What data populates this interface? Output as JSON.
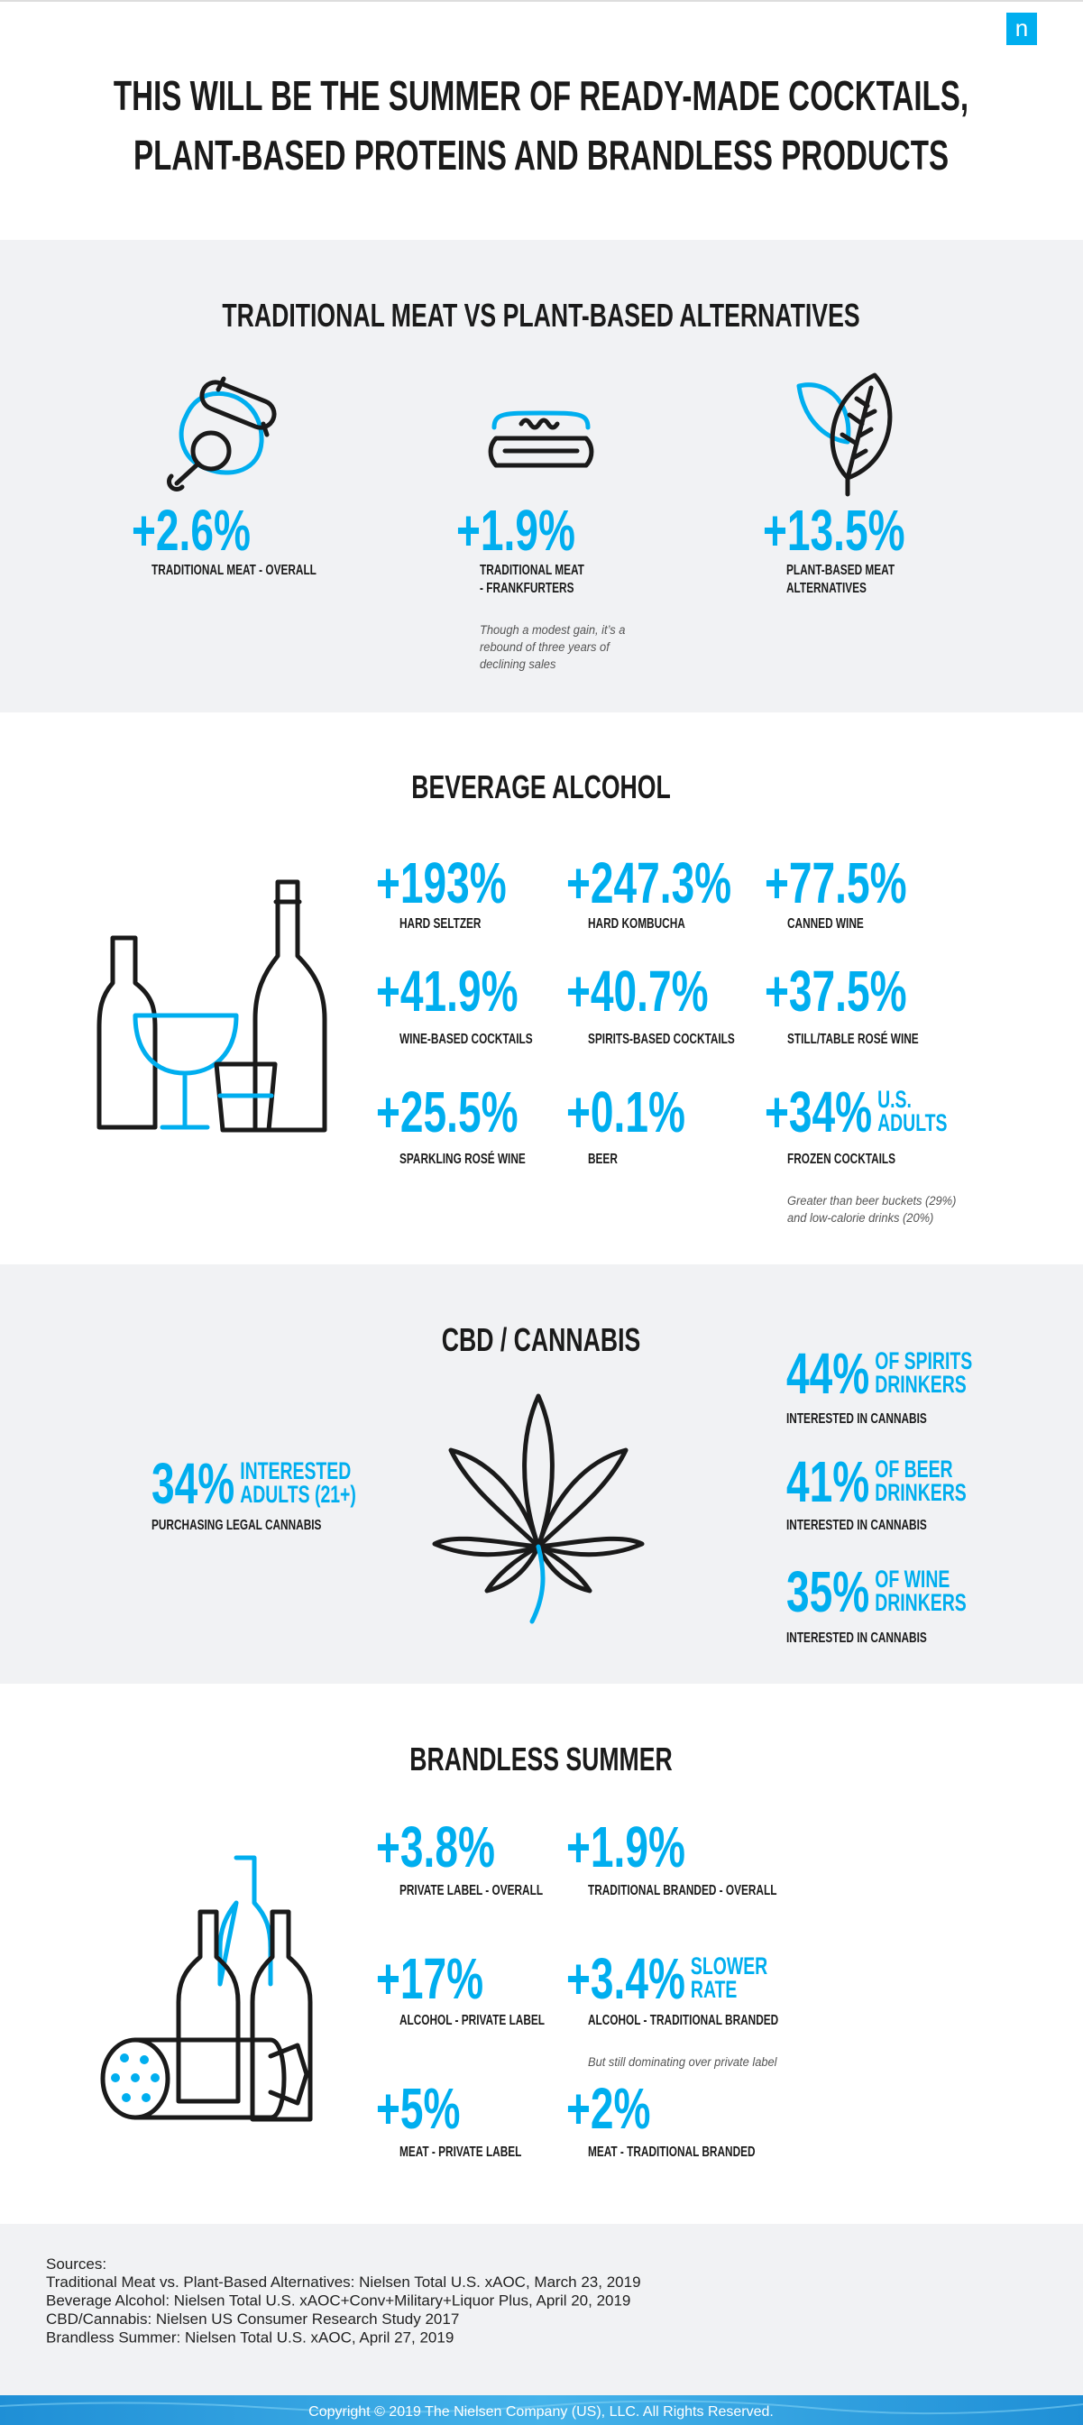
{
  "logo": "n",
  "title": [
    "THIS WILL BE THE SUMMER OF READY-MADE COCKTAILS,",
    "PLANT-BASED PROTEINS AND BRANDLESS PRODUCTS"
  ],
  "sections": [
    {
      "heading": "TRADITIONAL MEAT VS PLANT-BASED ALTERNATIVES",
      "stats": [
        {
          "value": "+2.6%",
          "label": [
            "TRADITIONAL MEAT - OVERALL"
          ]
        },
        {
          "value": "+1.9%",
          "label": [
            "TRADITIONAL MEAT",
            "- FRANKFURTERS"
          ],
          "note": [
            "Though a modest gain, it’s a",
            "rebound of three years of",
            "declining sales"
          ]
        },
        {
          "value": "+13.5%",
          "label": [
            "PLANT-BASED MEAT",
            "ALTERNATIVES"
          ]
        }
      ]
    },
    {
      "heading": "BEVERAGE ALCOHOL",
      "stats": [
        {
          "value": "+193%",
          "label": [
            "HARD SELTZER"
          ]
        },
        {
          "value": "+247.3%",
          "label": [
            "HARD KOMBUCHA"
          ]
        },
        {
          "value": "+77.5%",
          "label": [
            "CANNED WINE"
          ]
        },
        {
          "value": "+41.9%",
          "label": [
            "WINE-BASED COCKTAILS"
          ]
        },
        {
          "value": "+40.7%",
          "label": [
            "SPIRITS-BASED COCKTAILS"
          ]
        },
        {
          "value": "+37.5%",
          "label": [
            "STILL/TABLE ROSÉ WINE"
          ]
        },
        {
          "value": "+25.5%",
          "label": [
            "SPARKLING ROSÉ WINE"
          ]
        },
        {
          "value": "+0.1%",
          "label": [
            "BEER"
          ]
        },
        {
          "value": "+34%",
          "qualifier": [
            "U.S.",
            "ADULTS"
          ],
          "label": [
            "FROZEN COCKTAILS"
          ],
          "note": [
            "Greater than beer buckets (29%)",
            "and low-calorie drinks (20%)"
          ]
        }
      ]
    },
    {
      "heading": "CBD / CANNABIS",
      "stats": [
        {
          "value": "34%",
          "qualifier": [
            "INTERESTED",
            "ADULTS (21+)"
          ],
          "label": [
            "PURCHASING LEGAL CANNABIS"
          ]
        },
        {
          "value": "44%",
          "qualifier": [
            "OF SPIRITS",
            "DRINKERS"
          ],
          "label": [
            "INTERESTED IN CANNABIS"
          ]
        },
        {
          "value": "41%",
          "qualifier": [
            "OF BEER",
            "DRINKERS"
          ],
          "label": [
            "INTERESTED IN CANNABIS"
          ]
        },
        {
          "value": "35%",
          "qualifier": [
            "OF WINE",
            "DRINKERS"
          ],
          "label": [
            "INTERESTED IN CANNABIS"
          ]
        }
      ]
    },
    {
      "heading": "BRANDLESS SUMMER",
      "stats": [
        {
          "value": "+3.8%",
          "label": [
            "PRIVATE LABEL - OVERALL"
          ]
        },
        {
          "value": "+1.9%",
          "label": [
            "TRADITIONAL BRANDED - OVERALL"
          ]
        },
        {
          "value": "+17%",
          "label": [
            "ALCOHOL - PRIVATE LABEL"
          ]
        },
        {
          "value": "+3.4%",
          "qualifier": [
            "SLOWER",
            "RATE"
          ],
          "label": [
            "ALCOHOL - TRADITIONAL BRANDED"
          ],
          "note": [
            "But still dominating over private label"
          ]
        },
        {
          "value": "+5%",
          "label": [
            "MEAT - PRIVATE LABEL"
          ]
        },
        {
          "value": "+2%",
          "label": [
            "MEAT - TRADITIONAL BRANDED"
          ]
        }
      ]
    }
  ],
  "sources": {
    "heading": "Sources:",
    "lines": [
      "Traditional Meat vs. Plant-Based Alternatives: Nielsen Total U.S. xAOC, March 23, 2019",
      "Beverage Alcohol: Nielsen Total U.S. xAOC+Conv+Military+Liquor Plus, April 20, 2019",
      "CBD/Cannabis: Nielsen US Consumer Research Study 2017",
      "Brandless Summer: Nielsen Total U.S. xAOC, April 27, 2019"
    ]
  },
  "footer": "Copyright © 2019 The Nielsen Company (US), LLC. All Rights Reserved."
}
